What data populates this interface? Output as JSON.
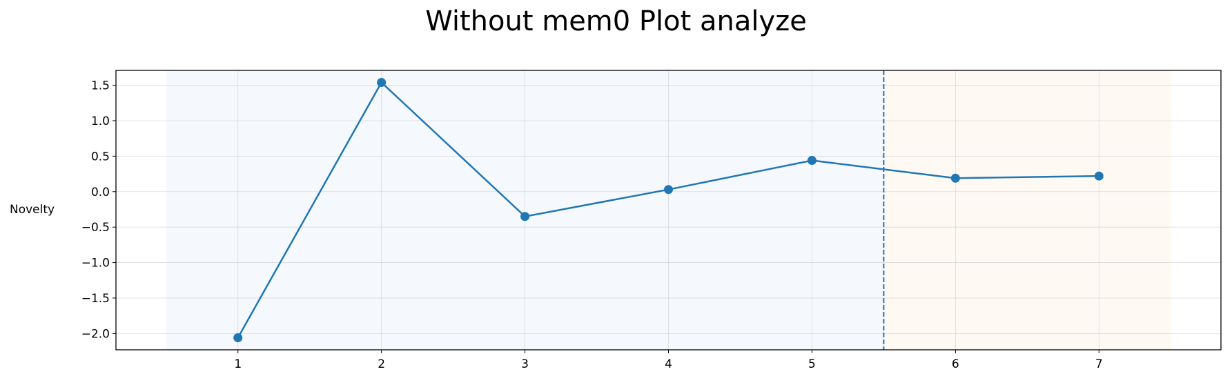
{
  "title": "Without mem0 Plot analyze",
  "chart_data": {
    "type": "line",
    "title": "Without mem0 Plot analyze",
    "xlabel": "",
    "ylabel": "Novelty",
    "x": [
      1,
      2,
      3,
      4,
      5,
      6,
      7
    ],
    "series": [
      {
        "values": [
          -2.06,
          1.54,
          -0.35,
          0.03,
          0.44,
          0.19,
          0.22
        ],
        "color": "#1f77b4"
      }
    ],
    "xlim": [
      0.15,
      7.85
    ],
    "ylim": [
      -2.23,
      1.71
    ],
    "xticks": [
      1,
      2,
      3,
      4,
      5,
      6,
      7
    ],
    "yticks": [
      1.5,
      1.0,
      0.5,
      0.0,
      -0.5,
      -1.0,
      -1.5,
      -2.0
    ],
    "ytick_labels": [
      "1.5",
      "1.0",
      "0.5",
      "0.0",
      "−0.5",
      "−1.0",
      "−1.5",
      "−2.0"
    ],
    "grid": true,
    "shaded_regions": [
      {
        "x_start": 0.5,
        "x_end": 5.5,
        "color": "#f5f8fd"
      },
      {
        "x_start": 5.5,
        "x_end": 7.5,
        "color": "#fef9f3"
      }
    ],
    "vertical_line": {
      "x": 5.5,
      "style": "dashed",
      "color": "#1f77b4"
    }
  }
}
